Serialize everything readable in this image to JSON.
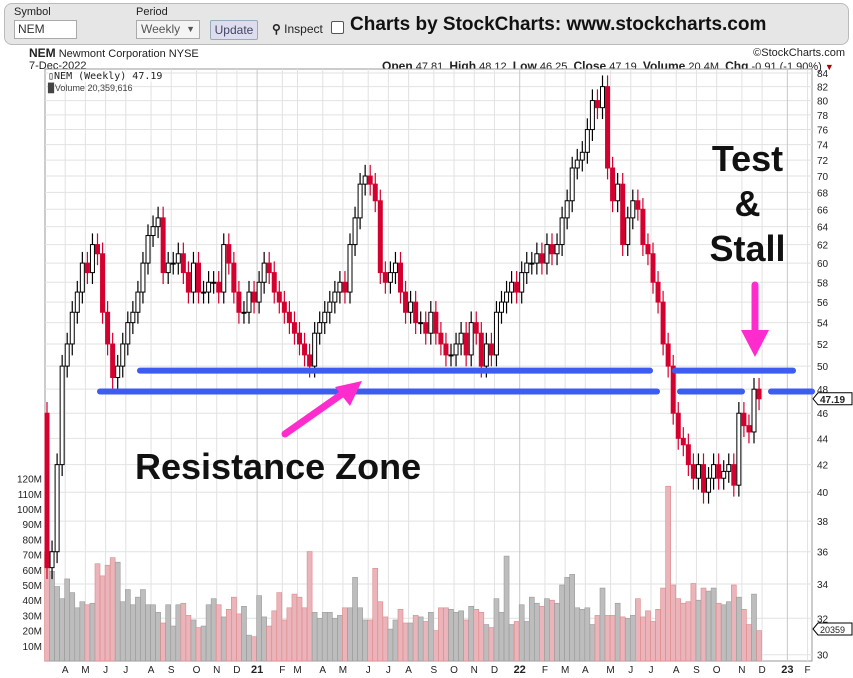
{
  "toolbar": {
    "symbol_label": "Symbol",
    "symbol_value": "NEM",
    "period_label": "Period",
    "period_value": "Weekly",
    "update": "Update",
    "inspect": "Inspect",
    "brand": "Charts by StockCharts:  www.stockcharts.com"
  },
  "header": {
    "ticker": "NEM",
    "company": "Newmont Corporation",
    "exchange": "NYSE",
    "copyright": "©StockCharts.com",
    "date": "7-Dec-2022",
    "open_label": "Open",
    "open": "47.81",
    "high_label": "High",
    "high": "48.12",
    "low_label": "Low",
    "low": "46.25",
    "close_label": "Close",
    "close": "47.19",
    "volume_label": "Volume",
    "volume": "20.4M",
    "chg_label": "Chg",
    "chg": "-0.91 (-1.90%)",
    "chg_arrow": "▼"
  },
  "legend": {
    "price": "NEM (Weekly) 47.19",
    "volume": "Volume 20,359,616"
  },
  "annotations": {
    "test": "Test",
    "amp": "&",
    "stall": "Stall",
    "resistance": "Resistance Zone"
  },
  "colors": {
    "down": "#d4002f",
    "up": "#ffffff",
    "vol_up": "#bdbdbd",
    "vol_down": "#eab4ba",
    "line": "#3d5cf0",
    "arrow": "#ff2ccd"
  },
  "chart_data": {
    "type": "candlestick",
    "title": "NEM (Weekly)",
    "y_scale": "log",
    "ylim": [
      29.5,
      84.5
    ],
    "y_ticks": [
      84,
      82,
      80,
      78,
      76,
      74,
      72,
      70,
      68,
      66,
      64,
      62,
      60,
      58,
      56,
      54,
      52,
      50,
      48,
      46,
      44,
      42,
      40,
      38,
      36,
      34,
      32,
      30
    ],
    "volume_ticks": [
      "10M",
      "20M",
      "30M",
      "40M",
      "50M",
      "60M",
      "70M",
      "80M",
      "90M",
      "100M",
      "110M",
      "120M"
    ],
    "last_price_tag": "47.19",
    "last_volume_tag": "20359",
    "first_open": 46,
    "close": [
      35,
      36,
      42,
      50,
      52,
      55,
      57,
      60,
      59,
      62,
      61,
      55,
      52,
      49,
      50,
      52,
      54,
      55,
      57,
      60,
      63,
      64,
      65,
      59,
      60,
      60,
      61,
      59,
      57,
      60,
      57,
      57,
      58,
      58,
      57,
      62,
      60,
      57,
      55,
      55,
      57,
      56,
      58,
      60,
      59,
      57,
      56,
      55,
      54,
      53,
      52,
      51,
      50,
      53,
      54,
      55,
      56,
      57,
      58,
      57,
      62,
      65,
      69,
      70,
      69,
      67,
      59,
      58,
      59,
      60,
      57,
      55,
      56,
      54,
      54,
      53,
      55,
      53,
      52,
      51,
      51,
      52,
      53,
      51,
      54,
      53,
      50,
      52,
      51,
      55,
      56,
      57,
      58,
      57,
      59,
      60,
      60,
      61,
      60,
      62,
      61,
      62,
      65,
      67,
      71,
      72,
      73,
      76,
      80,
      79,
      82,
      71,
      67,
      69,
      62,
      65,
      67,
      66,
      62,
      61,
      58,
      56,
      52,
      50,
      46,
      44,
      43.5,
      42,
      41,
      42,
      40,
      41,
      42,
      41,
      41.5,
      42,
      40.5,
      46,
      45,
      44.5,
      48,
      47.19
    ],
    "volume_m": [
      72,
      59,
      49,
      41,
      54,
      45,
      35,
      39,
      37,
      38,
      64,
      56,
      63,
      68,
      65,
      39,
      47,
      37,
      42,
      47,
      37,
      37,
      32,
      25,
      37,
      23,
      37,
      38,
      30,
      27,
      22,
      23,
      37,
      41,
      37,
      29,
      34,
      42,
      31,
      36,
      17,
      16,
      43,
      29,
      23,
      33,
      45,
      27,
      35,
      44,
      42,
      35,
      72,
      32,
      28,
      32,
      32,
      28,
      30,
      35,
      35,
      55,
      35,
      27,
      27,
      61,
      39,
      29,
      21,
      27,
      34,
      25,
      25,
      30,
      29,
      26,
      32,
      20,
      35,
      35,
      34,
      32,
      33,
      27,
      36,
      34,
      32,
      24,
      22,
      41,
      32,
      69,
      24,
      26,
      37,
      26,
      42,
      38,
      36,
      41,
      40,
      38,
      50,
      55,
      57,
      35,
      34,
      35,
      24,
      30,
      48,
      30,
      30,
      38,
      29,
      28,
      30,
      41,
      29,
      33,
      26,
      34,
      48,
      115,
      50,
      41,
      38,
      39,
      51,
      40,
      48,
      46,
      48,
      38,
      37,
      39,
      50,
      42,
      34,
      24,
      44,
      20
    ],
    "x_labels": [
      {
        "t": "A",
        "w": 4
      },
      {
        "t": "M",
        "w": 8
      },
      {
        "t": "J",
        "w": 12
      },
      {
        "t": "J",
        "w": 16
      },
      {
        "t": "A",
        "w": 21
      },
      {
        "t": "S",
        "w": 25
      },
      {
        "t": "O",
        "w": 30
      },
      {
        "t": "N",
        "w": 34
      },
      {
        "t": "D",
        "w": 38
      },
      {
        "t": "21",
        "w": 42,
        "bold": true
      },
      {
        "t": "F",
        "w": 47
      },
      {
        "t": "M",
        "w": 50
      },
      {
        "t": "A",
        "w": 55
      },
      {
        "t": "M",
        "w": 59
      },
      {
        "t": "J",
        "w": 64
      },
      {
        "t": "J",
        "w": 68
      },
      {
        "t": "A",
        "w": 72
      },
      {
        "t": "S",
        "w": 77
      },
      {
        "t": "O",
        "w": 81
      },
      {
        "t": "N",
        "w": 85
      },
      {
        "t": "D",
        "w": 89
      },
      {
        "t": "22",
        "w": 94,
        "bold": true
      },
      {
        "t": "F",
        "w": 99
      },
      {
        "t": "M",
        "w": 103
      },
      {
        "t": "A",
        "w": 107
      },
      {
        "t": "M",
        "w": 112
      },
      {
        "t": "J",
        "w": 116
      },
      {
        "t": "J",
        "w": 120
      },
      {
        "t": "A",
        "w": 125
      },
      {
        "t": "S",
        "w": 129
      },
      {
        "t": "O",
        "w": 133
      },
      {
        "t": "N",
        "w": 138
      },
      {
        "t": "D",
        "w": 142
      },
      {
        "t": "23",
        "w": 147,
        "bold": true
      },
      {
        "t": "F",
        "w": 151
      }
    ],
    "resistance_levels": [
      49.6,
      47.8
    ]
  }
}
